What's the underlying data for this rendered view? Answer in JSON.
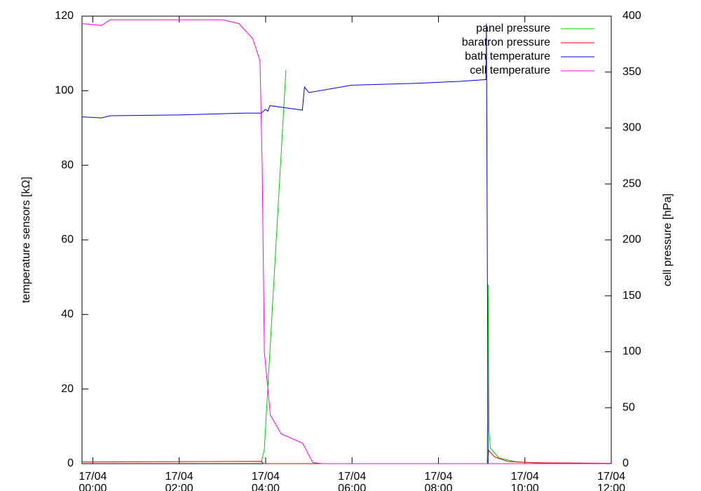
{
  "chart_data": {
    "type": "line",
    "ylabel": "temperature sensors [kΩ]",
    "y2label": "cell pressure [hPa]",
    "xlim": [
      -0.25,
      12
    ],
    "xticks": [
      {
        "value": 0,
        "label": "17/04\n00:00"
      },
      {
        "value": 2,
        "label": "17/04\n02:00"
      },
      {
        "value": 4,
        "label": "17/04\n04:00"
      },
      {
        "value": 6,
        "label": "17/04\n06:00"
      },
      {
        "value": 8,
        "label": "17/04\n08:00"
      },
      {
        "value": 10,
        "label": "17/04\n10:00"
      },
      {
        "value": 12,
        "label": "17/04\n12:00"
      }
    ],
    "ylim": [
      0,
      120
    ],
    "yticks": [
      0,
      20,
      40,
      60,
      80,
      100,
      120
    ],
    "y2lim": [
      0,
      400
    ],
    "y2ticks": [
      0,
      50,
      100,
      150,
      200,
      250,
      300,
      350,
      400
    ],
    "legend": "top-right",
    "series": [
      {
        "name": "panel pressure",
        "color": "#00cc00",
        "axis": "y2",
        "x": [
          3.9,
          3.97,
          4.47,
          4.48,
          9.13,
          9.15,
          9.17,
          9.2,
          9.4,
          9.8,
          10.5,
          12
        ],
        "values": [
          1,
          13,
          352,
          null,
          0,
          160,
          30,
          14,
          5,
          1.5,
          0.5,
          0.3
        ]
      },
      {
        "name": "baratron pressure",
        "color": "#dd0000",
        "axis": "y2",
        "x": [
          -0.25,
          3.9,
          3.95,
          9.13,
          9.16,
          9.3,
          9.6,
          10.2,
          12
        ],
        "values": [
          1.5,
          2,
          0,
          0,
          12,
          6,
          2,
          0.8,
          0.3
        ]
      },
      {
        "name": "bath temperature",
        "color": "#0000dd",
        "x": [
          -0.25,
          0.2,
          0.4,
          2.0,
          3.5,
          3.9,
          4.0,
          4.05,
          4.1,
          4.6,
          4.85,
          4.9,
          5.0,
          6.0,
          7.5,
          8.5,
          9.1,
          9.11,
          9.15,
          12
        ],
        "values": [
          93,
          92.7,
          93.3,
          93.5,
          94,
          94,
          95,
          94.5,
          96,
          95.2,
          94.8,
          101,
          99.5,
          101.5,
          102,
          102.5,
          103,
          118,
          0,
          0
        ]
      },
      {
        "name": "cell temperature",
        "color": "#ff00ff",
        "x": [
          -0.25,
          0.2,
          0.4,
          3.0,
          3.38,
          3.7,
          3.87,
          3.92,
          3.97,
          4.11,
          4.36,
          4.85,
          4.88,
          5.09,
          5.3,
          12
        ],
        "values": [
          118,
          117.5,
          119,
          119,
          118,
          114,
          108,
          80,
          30,
          13,
          8,
          5.5,
          5,
          0.3,
          0,
          0
        ]
      }
    ]
  }
}
